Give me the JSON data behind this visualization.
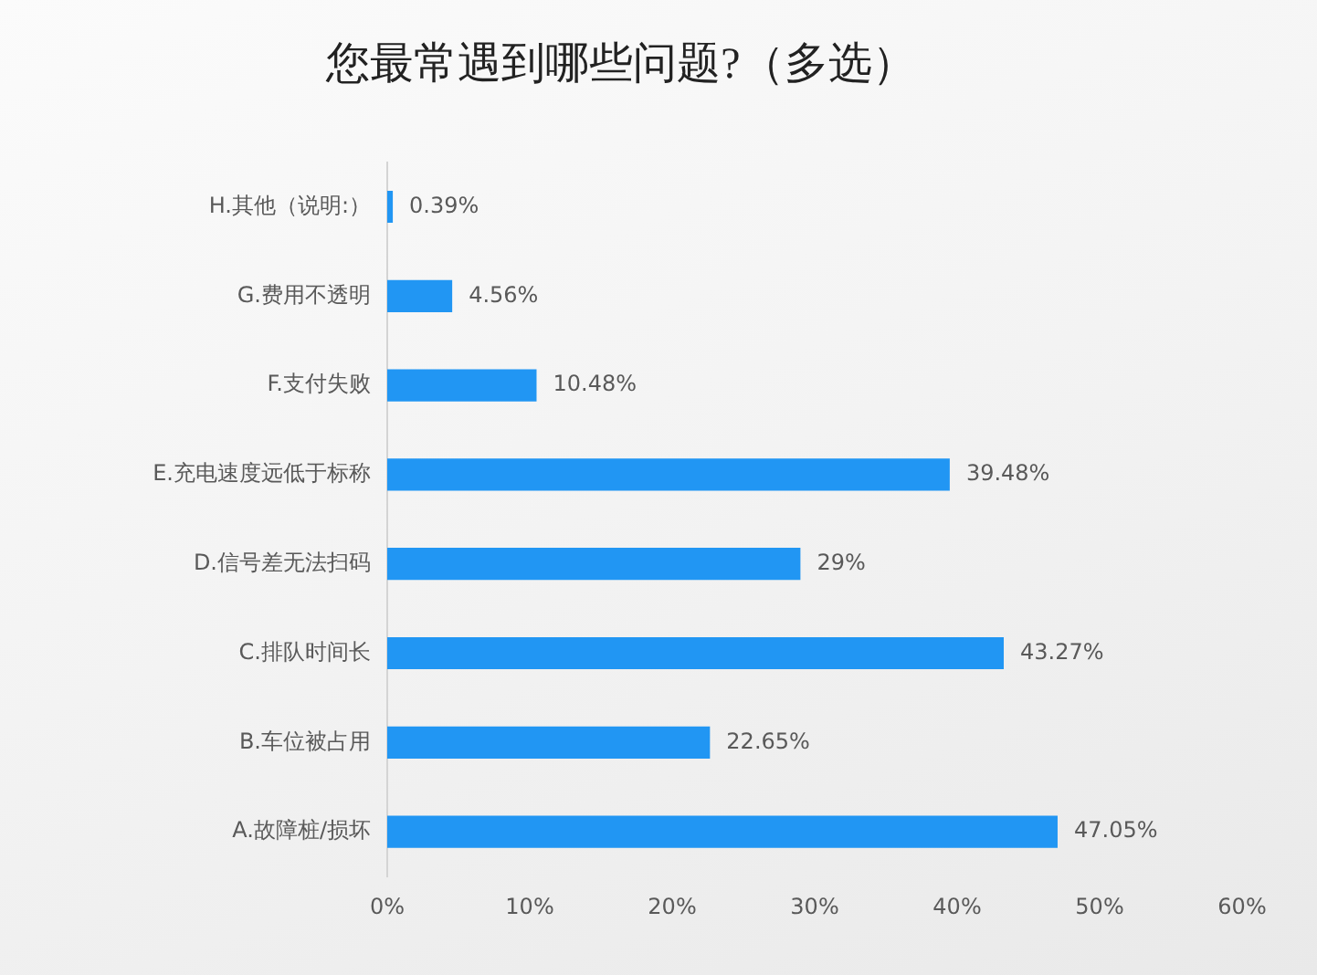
{
  "chart_data": {
    "type": "bar",
    "orientation": "horizontal",
    "title": "您最常遇到哪些问题?（多选）",
    "categories": [
      "H.其他（说明:）",
      "G.费用不透明",
      "F.支付失败",
      "E.充电速度远低于标称",
      "D.信号差无法扫码",
      "C.排队时间长",
      "B.车位被占用",
      "A.故障桩/损坏"
    ],
    "values": [
      0.39,
      4.56,
      10.48,
      39.48,
      29,
      43.27,
      22.65,
      47.05
    ],
    "value_labels": [
      "0.39%",
      "4.56%",
      "10.48%",
      "39.48%",
      "29%",
      "43.27%",
      "22.65%",
      "47.05%"
    ],
    "color": "#2196f3",
    "xlim": [
      0,
      60
    ],
    "xticks": [
      {
        "value": 0,
        "label": "0%"
      },
      {
        "value": 10,
        "label": "10%"
      },
      {
        "value": 20,
        "label": "20%"
      },
      {
        "value": 30,
        "label": "30%"
      },
      {
        "value": 40,
        "label": "40%"
      },
      {
        "value": 50,
        "label": "50%"
      },
      {
        "value": 60,
        "label": "60%"
      }
    ]
  }
}
